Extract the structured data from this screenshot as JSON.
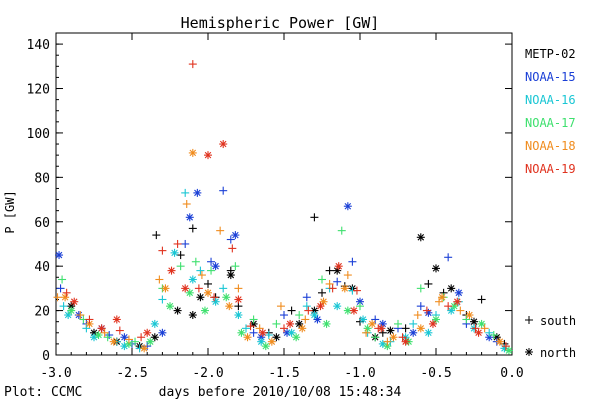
{
  "chart_data": {
    "type": "scatter",
    "title": "Hemispheric Power [GW]",
    "xlabel": "days before 2010/10/08 15:48:34",
    "ylabel": "P [GW]",
    "xlim": [
      -3.0,
      0.0
    ],
    "ylim": [
      0,
      145
    ],
    "x_ticks": [
      -3.0,
      -2.5,
      -2.0,
      -1.5,
      -1.0,
      -0.5,
      0.0
    ],
    "x_tick_labels": [
      "-3.0",
      "-2.5",
      "-2.0",
      "-1.5",
      "-1.0",
      "-0.5",
      "0.0"
    ],
    "y_ticks": [
      0,
      20,
      40,
      60,
      80,
      100,
      120,
      140
    ],
    "y_tick_labels": [
      "0",
      "20",
      "40",
      "60",
      "80",
      "100",
      "120",
      "140"
    ],
    "grid": false,
    "legend_position": "right",
    "footer": "Plot: CCMC",
    "hemisphere_legend": [
      {
        "marker": "+",
        "label": "south"
      },
      {
        "marker": "*",
        "label": "north"
      }
    ],
    "series": [
      {
        "name": "METP-02",
        "color": "#000000",
        "south": [
          [
            -2.34,
            54
          ],
          [
            -2.18,
            45
          ],
          [
            -2.1,
            57
          ],
          [
            -2.0,
            32
          ],
          [
            -1.95,
            26
          ],
          [
            -1.85,
            38
          ],
          [
            -1.8,
            22
          ],
          [
            -1.6,
            10
          ],
          [
            -1.45,
            20
          ],
          [
            -1.3,
            62
          ],
          [
            -1.25,
            28
          ],
          [
            -1.2,
            38
          ],
          [
            -1.1,
            31
          ],
          [
            -1.0,
            15
          ],
          [
            -0.85,
            10
          ],
          [
            -0.7,
            12
          ],
          [
            -0.55,
            32
          ],
          [
            -0.45,
            28
          ],
          [
            -0.3,
            18
          ],
          [
            -0.2,
            25
          ],
          [
            -0.05,
            5
          ]
        ],
        "north": [
          [
            -2.9,
            22
          ],
          [
            -2.75,
            10
          ],
          [
            -2.6,
            6
          ],
          [
            -2.45,
            4
          ],
          [
            -2.35,
            8
          ],
          [
            -2.2,
            20
          ],
          [
            -2.1,
            18
          ],
          [
            -2.05,
            26
          ],
          [
            -1.85,
            36
          ],
          [
            -1.7,
            14
          ],
          [
            -1.55,
            8
          ],
          [
            -1.4,
            14
          ],
          [
            -1.3,
            20
          ],
          [
            -1.15,
            38
          ],
          [
            -1.05,
            30
          ],
          [
            -0.9,
            8
          ],
          [
            -0.8,
            11
          ],
          [
            -0.6,
            53
          ],
          [
            -0.5,
            39
          ],
          [
            -0.4,
            30
          ],
          [
            -0.25,
            15
          ],
          [
            -0.1,
            8
          ]
        ]
      },
      {
        "name": "NOAA-15",
        "color": "#1a3fd6",
        "south": [
          [
            -2.97,
            30
          ],
          [
            -2.8,
            14
          ],
          [
            -2.65,
            9
          ],
          [
            -2.5,
            5
          ],
          [
            -2.4,
            4
          ],
          [
            -2.15,
            50
          ],
          [
            -1.98,
            42
          ],
          [
            -1.9,
            74
          ],
          [
            -1.85,
            52
          ],
          [
            -1.7,
            10
          ],
          [
            -1.5,
            18
          ],
          [
            -1.35,
            26
          ],
          [
            -1.15,
            33
          ],
          [
            -1.05,
            42
          ],
          [
            -0.9,
            16
          ],
          [
            -0.75,
            12
          ],
          [
            -0.6,
            22
          ],
          [
            -0.42,
            44
          ],
          [
            -0.3,
            14
          ],
          [
            -0.1,
            6
          ]
        ],
        "north": [
          [
            -2.98,
            45
          ],
          [
            -2.85,
            18
          ],
          [
            -2.7,
            12
          ],
          [
            -2.55,
            8
          ],
          [
            -2.3,
            10
          ],
          [
            -2.12,
            62
          ],
          [
            -2.07,
            73
          ],
          [
            -1.95,
            40
          ],
          [
            -1.82,
            54
          ],
          [
            -1.65,
            8
          ],
          [
            -1.48,
            10
          ],
          [
            -1.28,
            16
          ],
          [
            -1.08,
            67
          ],
          [
            -1.0,
            24
          ],
          [
            -0.85,
            14
          ],
          [
            -0.65,
            10
          ],
          [
            -0.55,
            19
          ],
          [
            -0.35,
            28
          ],
          [
            -0.15,
            8
          ]
        ]
      },
      {
        "name": "NOAA-16",
        "color": "#19c6d4",
        "south": [
          [
            -2.95,
            22
          ],
          [
            -2.8,
            12
          ],
          [
            -2.6,
            6
          ],
          [
            -2.45,
            3
          ],
          [
            -2.3,
            25
          ],
          [
            -2.15,
            73
          ],
          [
            -2.05,
            38
          ],
          [
            -1.9,
            30
          ],
          [
            -1.75,
            12
          ],
          [
            -1.6,
            9
          ],
          [
            -1.35,
            22
          ],
          [
            -1.2,
            30
          ],
          [
            -1.05,
            29
          ],
          [
            -0.95,
            10
          ],
          [
            -0.8,
            6
          ],
          [
            -0.65,
            14
          ],
          [
            -0.5,
            18
          ],
          [
            -0.35,
            24
          ],
          [
            -0.15,
            10
          ]
        ],
        "north": [
          [
            -2.92,
            18
          ],
          [
            -2.75,
            8
          ],
          [
            -2.55,
            4
          ],
          [
            -2.35,
            14
          ],
          [
            -2.22,
            46
          ],
          [
            -2.1,
            34
          ],
          [
            -1.95,
            24
          ],
          [
            -1.8,
            18
          ],
          [
            -1.65,
            6
          ],
          [
            -1.45,
            10
          ],
          [
            -1.3,
            18
          ],
          [
            -1.15,
            22
          ],
          [
            -0.98,
            16
          ],
          [
            -0.85,
            5
          ],
          [
            -0.7,
            8
          ],
          [
            -0.55,
            10
          ],
          [
            -0.4,
            20
          ],
          [
            -0.25,
            12
          ],
          [
            -0.05,
            3
          ]
        ]
      },
      {
        "name": "NOAA-17",
        "color": "#3ee06e",
        "south": [
          [
            -2.96,
            34
          ],
          [
            -2.82,
            16
          ],
          [
            -2.66,
            8
          ],
          [
            -2.48,
            6
          ],
          [
            -2.3,
            30
          ],
          [
            -2.18,
            40
          ],
          [
            -2.08,
            42
          ],
          [
            -1.98,
            38
          ],
          [
            -1.82,
            40
          ],
          [
            -1.7,
            16
          ],
          [
            -1.55,
            14
          ],
          [
            -1.4,
            18
          ],
          [
            -1.25,
            34
          ],
          [
            -1.12,
            56
          ],
          [
            -1.0,
            22
          ],
          [
            -0.9,
            8
          ],
          [
            -0.75,
            14
          ],
          [
            -0.6,
            30
          ],
          [
            -0.45,
            26
          ],
          [
            -0.3,
            16
          ],
          [
            -0.12,
            9
          ]
        ],
        "north": [
          [
            -2.9,
            20
          ],
          [
            -2.72,
            9
          ],
          [
            -2.52,
            5
          ],
          [
            -2.38,
            6
          ],
          [
            -2.25,
            22
          ],
          [
            -2.12,
            28
          ],
          [
            -2.02,
            20
          ],
          [
            -1.88,
            26
          ],
          [
            -1.78,
            10
          ],
          [
            -1.62,
            4
          ],
          [
            -1.42,
            8
          ],
          [
            -1.22,
            14
          ],
          [
            -1.08,
            20
          ],
          [
            -0.95,
            12
          ],
          [
            -0.82,
            4
          ],
          [
            -0.68,
            6
          ],
          [
            -0.5,
            16
          ],
          [
            -0.38,
            22
          ],
          [
            -0.2,
            14
          ],
          [
            -0.02,
            2
          ]
        ]
      },
      {
        "name": "NOAA-18",
        "color": "#f08c1e",
        "south": [
          [
            -2.99,
            26
          ],
          [
            -2.84,
            18
          ],
          [
            -2.68,
            10
          ],
          [
            -2.52,
            7
          ],
          [
            -2.32,
            34
          ],
          [
            -2.14,
            68
          ],
          [
            -2.04,
            36
          ],
          [
            -1.92,
            56
          ],
          [
            -1.8,
            30
          ],
          [
            -1.66,
            12
          ],
          [
            -1.52,
            22
          ],
          [
            -1.36,
            16
          ],
          [
            -1.2,
            32
          ],
          [
            -1.08,
            36
          ],
          [
            -0.96,
            10
          ],
          [
            -0.82,
            6
          ],
          [
            -0.62,
            18
          ],
          [
            -0.48,
            24
          ],
          [
            -0.34,
            20
          ],
          [
            -0.18,
            12
          ]
        ],
        "north": [
          [
            -2.94,
            26
          ],
          [
            -2.78,
            14
          ],
          [
            -2.62,
            6
          ],
          [
            -2.42,
            3
          ],
          [
            -2.28,
            30
          ],
          [
            -2.1,
            91
          ],
          [
            -2.0,
            28
          ],
          [
            -1.86,
            22
          ],
          [
            -1.74,
            8
          ],
          [
            -1.58,
            6
          ],
          [
            -1.38,
            12
          ],
          [
            -1.24,
            24
          ],
          [
            -1.1,
            30
          ],
          [
            -0.92,
            14
          ],
          [
            -0.78,
            8
          ],
          [
            -0.6,
            12
          ],
          [
            -0.46,
            26
          ],
          [
            -0.28,
            18
          ],
          [
            -0.08,
            6
          ]
        ]
      },
      {
        "name": "NOAA-19",
        "color": "#e0321e",
        "south": [
          [
            -2.93,
            28
          ],
          [
            -2.78,
            16
          ],
          [
            -2.58,
            11
          ],
          [
            -2.44,
            8
          ],
          [
            -2.3,
            47
          ],
          [
            -2.2,
            50
          ],
          [
            -2.1,
            131
          ],
          [
            -2.06,
            30
          ],
          [
            -1.96,
            26
          ],
          [
            -1.84,
            48
          ],
          [
            -1.72,
            13
          ],
          [
            -1.5,
            12
          ],
          [
            -1.34,
            20
          ],
          [
            -1.18,
            30
          ],
          [
            -1.02,
            29
          ],
          [
            -0.88,
            12
          ],
          [
            -0.72,
            8
          ],
          [
            -0.56,
            20
          ],
          [
            -0.42,
            22
          ],
          [
            -0.24,
            12
          ],
          [
            -0.04,
            4
          ]
        ],
        "north": [
          [
            -2.88,
            24
          ],
          [
            -2.7,
            12
          ],
          [
            -2.6,
            16
          ],
          [
            -2.4,
            10
          ],
          [
            -2.24,
            38
          ],
          [
            -2.15,
            30
          ],
          [
            -2.0,
            90
          ],
          [
            -1.9,
            95
          ],
          [
            -1.8,
            25
          ],
          [
            -1.64,
            10
          ],
          [
            -1.46,
            14
          ],
          [
            -1.26,
            22
          ],
          [
            -1.14,
            40
          ],
          [
            -1.04,
            20
          ],
          [
            -0.86,
            12
          ],
          [
            -0.7,
            6
          ],
          [
            -0.52,
            14
          ],
          [
            -0.36,
            24
          ],
          [
            -0.22,
            10
          ]
        ]
      }
    ]
  }
}
